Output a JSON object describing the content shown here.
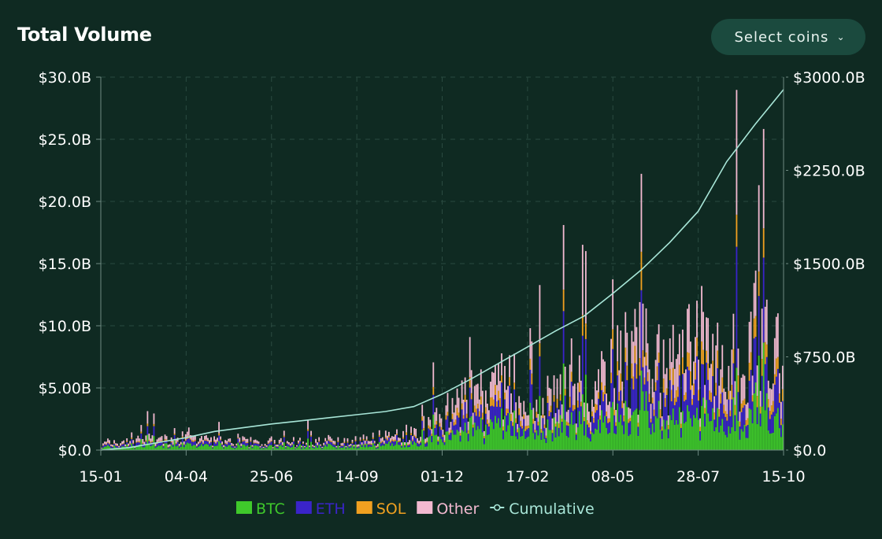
{
  "header": {
    "title": "Total Volume"
  },
  "controls": {
    "select_label": "Select coins",
    "chevron_icon": "chevron-down-icon"
  },
  "colors": {
    "background": "#0f2a22",
    "BTC": "#3fc92b",
    "ETH": "#3a24c9",
    "SOL": "#f0a020",
    "Other": "#f2b9d0",
    "Cumulative": "#a8e6d8"
  },
  "chart_data": {
    "type": "bar",
    "stacked": true,
    "title": "Total Volume",
    "xlabel": "",
    "ylabel": "",
    "x_ticks": [
      "15-01",
      "04-04",
      "25-06",
      "14-09",
      "01-12",
      "17-02",
      "08-05",
      "28-07",
      "15-10"
    ],
    "y_left_ticks": [
      "$0.0",
      "$5.00B",
      "$10.0B",
      "$15.0B",
      "$20.0B",
      "$25.0B",
      "$30.0B"
    ],
    "y_right_ticks": [
      "$0.0",
      "$750.0B",
      "$1500.0B",
      "$2250.0B",
      "$3000.0B"
    ],
    "ylim_left": [
      0,
      30
    ],
    "ylim_right": [
      0,
      3000
    ],
    "units_left": "billion USD per day",
    "units_right": "billion USD cumulative",
    "grid": true,
    "legend_position": "bottom",
    "series": [
      {
        "name": "BTC",
        "axis": "left",
        "monthly_avg": [
          0.2,
          0.28,
          0.35,
          0.32,
          0.3,
          0.26,
          0.25,
          0.26,
          0.3,
          0.32,
          0.42,
          0.6,
          1.4,
          1.7,
          2.0,
          1.8,
          1.7,
          2.0,
          2.8,
          2.4,
          2.7,
          2.6,
          3.0,
          3.2
        ]
      },
      {
        "name": "ETH",
        "axis": "left",
        "monthly_avg": [
          0.12,
          0.18,
          0.24,
          0.2,
          0.18,
          0.16,
          0.15,
          0.16,
          0.18,
          0.2,
          0.26,
          0.38,
          0.9,
          1.1,
          1.3,
          1.2,
          1.1,
          1.4,
          2.0,
          1.7,
          2.2,
          2.3,
          2.4,
          2.3
        ]
      },
      {
        "name": "SOL",
        "axis": "left",
        "monthly_avg": [
          0.04,
          0.06,
          0.08,
          0.07,
          0.06,
          0.05,
          0.05,
          0.05,
          0.06,
          0.07,
          0.1,
          0.14,
          0.35,
          0.45,
          0.55,
          0.5,
          0.45,
          0.55,
          0.85,
          0.75,
          0.95,
          1.0,
          1.05,
          1.1
        ]
      },
      {
        "name": "Other",
        "axis": "left",
        "monthly_avg": [
          0.14,
          0.22,
          0.3,
          0.26,
          0.22,
          0.18,
          0.17,
          0.18,
          0.2,
          0.22,
          0.3,
          0.45,
          1.2,
          1.4,
          1.6,
          1.5,
          1.4,
          1.6,
          2.4,
          2.0,
          2.4,
          2.5,
          2.7,
          2.8
        ]
      },
      {
        "name": "Cumulative",
        "type": "line",
        "axis": "right",
        "monthly_points": [
          [
            0,
            0
          ],
          [
            1,
            20
          ],
          [
            2,
            60
          ],
          [
            3,
            100
          ],
          [
            4,
            150
          ],
          [
            5,
            180
          ],
          [
            6,
            210
          ],
          [
            7,
            235
          ],
          [
            8,
            260
          ],
          [
            9,
            285
          ],
          [
            10,
            310
          ],
          [
            11,
            350
          ],
          [
            12,
            450
          ],
          [
            13,
            570
          ],
          [
            14,
            700
          ],
          [
            15,
            830
          ],
          [
            16,
            960
          ],
          [
            17,
            1080
          ],
          [
            18,
            1260
          ],
          [
            19,
            1450
          ],
          [
            20,
            1670
          ],
          [
            21,
            1920
          ],
          [
            22,
            2320
          ],
          [
            23,
            2620
          ],
          [
            24,
            2900
          ]
        ]
      }
    ]
  }
}
